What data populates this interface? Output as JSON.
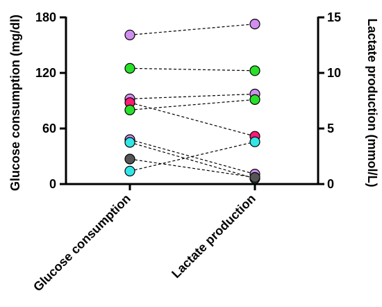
{
  "chart_data": {
    "type": "scatter",
    "categories": [
      "Glucose consumption",
      "Lactate production"
    ],
    "ylabel_left": "Glucose consumption (mg/dl)",
    "ylabel_right": "Lactate production (mmol/L)",
    "ylim_left": [
      0,
      180
    ],
    "ylim_right": [
      0,
      15
    ],
    "yticks_left": [
      "0",
      "60",
      "120",
      "180"
    ],
    "yticks_right": [
      "0",
      "5",
      "10",
      "15"
    ],
    "grid": false,
    "pairs": [
      {
        "color": "#d08ef0",
        "glucose": 161,
        "lactate": 14.4
      },
      {
        "color": "#29e029",
        "glucose": 125,
        "lactate": 10.2
      },
      {
        "color": "#d08ef0",
        "glucose": 92,
        "lactate": 8.1
      },
      {
        "color": "#ff1a75",
        "glucose": 88,
        "lactate": 4.3
      },
      {
        "color": "#29e029",
        "glucose": 80,
        "lactate": 7.6
      },
      {
        "color": "#d08ef0",
        "glucose": 48,
        "lactate": 0.9
      },
      {
        "color": "#33e6e6",
        "glucose": 45,
        "lactate": 0.5
      },
      {
        "color": "#555555",
        "glucose": 27,
        "lactate": 0.6
      },
      {
        "color": "#33e6e6",
        "glucose": 14,
        "lactate": 3.8
      }
    ]
  }
}
